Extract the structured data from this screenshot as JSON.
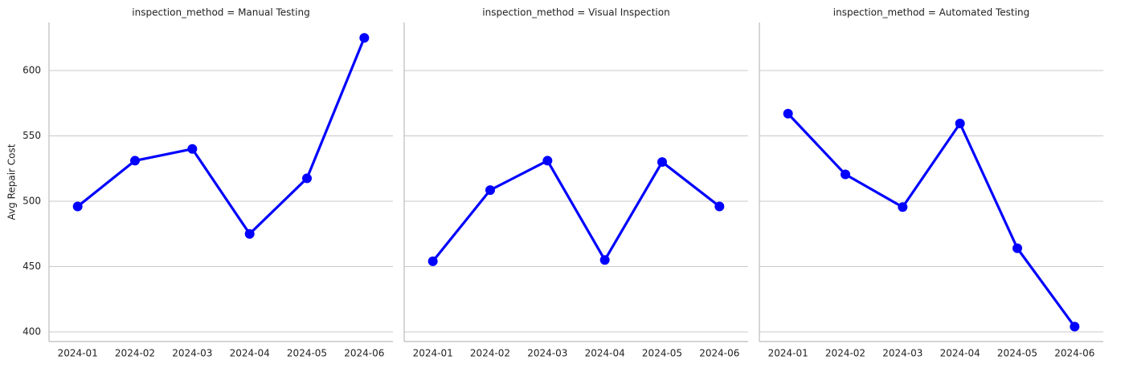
{
  "chart_data": [
    {
      "type": "line",
      "title": "inspection_method = Manual Testing",
      "ylabel": "Avg Repair Cost",
      "categories": [
        "2024-01",
        "2024-02",
        "2024-03",
        "2024-04",
        "2024-05",
        "2024-06"
      ],
      "values": [
        496,
        531,
        540,
        475,
        517.5,
        625
      ],
      "color": "#0000ff",
      "ylim": [
        392.6,
        636.8
      ],
      "yticks": [
        400,
        450,
        500,
        550,
        600
      ],
      "grid": true
    },
    {
      "type": "line",
      "title": "inspection_method = Visual Inspection",
      "categories": [
        "2024-01",
        "2024-02",
        "2024-03",
        "2024-04",
        "2024-05",
        "2024-06"
      ],
      "values": [
        454,
        508.5,
        531,
        455,
        530,
        496
      ],
      "color": "#0000ff",
      "ylim": [
        392.6,
        636.8
      ],
      "yticks": [
        400,
        450,
        500,
        550,
        600
      ],
      "grid": true
    },
    {
      "type": "line",
      "title": "inspection_method = Automated Testing",
      "categories": [
        "2024-01",
        "2024-02",
        "2024-03",
        "2024-04",
        "2024-05",
        "2024-06"
      ],
      "values": [
        567,
        520.5,
        495.5,
        559.5,
        464,
        404
      ],
      "color": "#0000ff",
      "ylim": [
        392.6,
        636.8
      ],
      "yticks": [
        400,
        450,
        500,
        550,
        600
      ],
      "grid": true
    }
  ]
}
